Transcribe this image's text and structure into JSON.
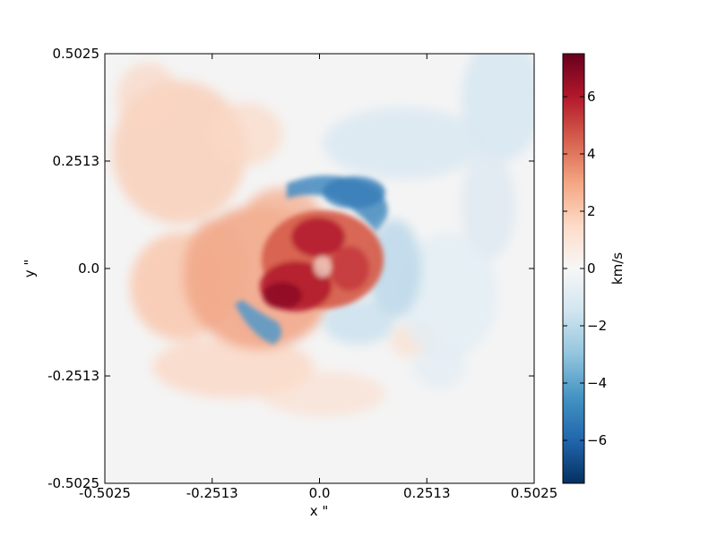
{
  "chart_data": {
    "type": "heatmap",
    "title": "",
    "xlabel": "x \"",
    "ylabel": "y \"",
    "xlim": [
      -0.5025,
      0.5025
    ],
    "ylim": [
      -0.5025,
      0.5025
    ],
    "x_ticks": [
      "-0.5025",
      "-0.2513",
      "0.0",
      "0.2513",
      "0.5025"
    ],
    "x_tick_values": [
      -0.5025,
      -0.2513,
      0.0,
      0.2513,
      0.5025
    ],
    "y_ticks": [
      "0.5025",
      "0.2513",
      "0.0",
      "-0.2513",
      "-0.5025"
    ],
    "y_tick_values": [
      0.5025,
      0.2513,
      0.0,
      -0.2513,
      -0.5025
    ],
    "colorbar": {
      "label": "km/s",
      "range": [
        -7.5,
        7.5
      ],
      "ticks": [
        "6",
        "4",
        "2",
        "0",
        "−2",
        "−4",
        "−6"
      ],
      "tick_values": [
        6,
        4,
        2,
        0,
        -2,
        -4,
        -6
      ],
      "colormap": "RdBu_r",
      "colors": [
        "#053061",
        "#2166ac",
        "#4393c3",
        "#92c5de",
        "#d1e5f0",
        "#f7f7f7",
        "#fddbc7",
        "#f4a582",
        "#d6604d",
        "#b2182b",
        "#67001f"
      ]
    },
    "velocity_features": [
      {
        "description": "strong redshift core",
        "x": -0.04,
        "y": 0.02,
        "value_km_s": 6.5
      },
      {
        "description": "redshift ring west",
        "x": -0.15,
        "y": 0.03,
        "value_km_s": 3.0
      },
      {
        "description": "blueshift arc north",
        "x": 0.03,
        "y": 0.18,
        "value_km_s": -4.0
      },
      {
        "description": "blueshift arc south-west",
        "x": -0.14,
        "y": -0.12,
        "value_km_s": -3.5
      },
      {
        "description": "faint blueshift north-east",
        "x": 0.35,
        "y": 0.3,
        "value_km_s": -1.0
      },
      {
        "description": "faint redshift north-west",
        "x": -0.3,
        "y": 0.3,
        "value_km_s": 1.0
      }
    ]
  }
}
